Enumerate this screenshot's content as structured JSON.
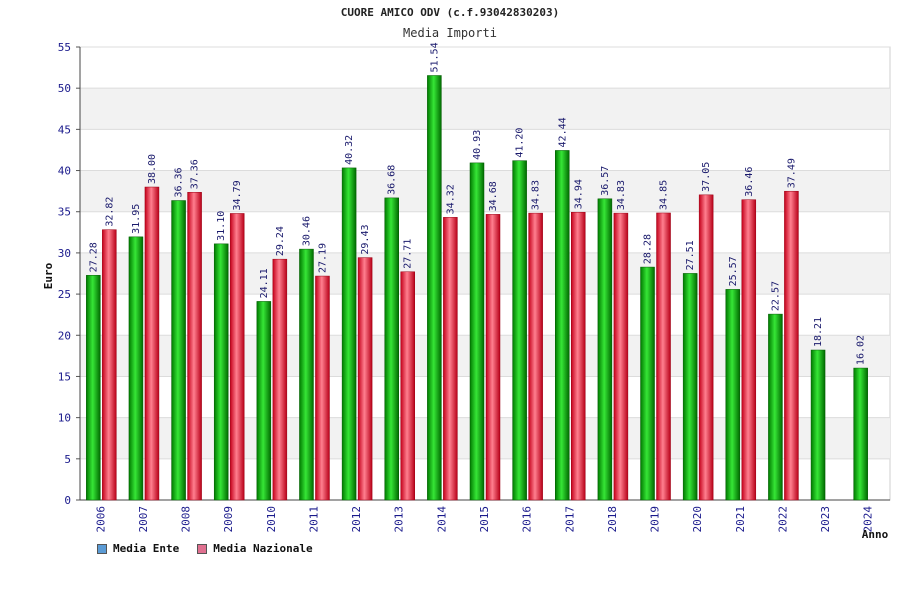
{
  "chart_data": {
    "type": "bar",
    "title": "CUORE AMICO ODV (c.f.93042830203)",
    "subtitle": "Media Importi",
    "xlabel": "Anno",
    "ylabel": "Euro",
    "ylim": [
      0,
      55
    ],
    "yticks": [
      0,
      5,
      10,
      15,
      20,
      25,
      30,
      35,
      40,
      45,
      50,
      55
    ],
    "grid": true,
    "legend_position": "bottom-left",
    "categories": [
      "2006",
      "2007",
      "2008",
      "2009",
      "2010",
      "2011",
      "2012",
      "2013",
      "2014",
      "2015",
      "2016",
      "2017",
      "2018",
      "2019",
      "2020",
      "2021",
      "2022",
      "2023",
      "2024"
    ],
    "series": [
      {
        "name": "Media Ente",
        "color": "#00b400",
        "values": [
          27.28,
          31.95,
          36.36,
          31.1,
          24.11,
          30.46,
          40.32,
          36.68,
          51.54,
          40.93,
          41.2,
          42.44,
          36.57,
          28.28,
          27.51,
          25.57,
          22.57,
          18.21,
          16.02
        ],
        "labels": [
          "27.28",
          "31.95",
          "36.36",
          "31.10",
          "24.11",
          "30.46",
          "40.32",
          "36.68",
          "51.54",
          "40.93",
          "41.20",
          "42.44",
          "36.57",
          "28.28",
          "27.51",
          "25.57",
          "22.57",
          "18.21",
          "16.02"
        ]
      },
      {
        "name": "Media Nazionale",
        "color": "#e8283c",
        "values": [
          32.82,
          38.0,
          37.36,
          34.79,
          29.24,
          27.19,
          29.43,
          27.71,
          34.32,
          34.68,
          34.83,
          34.94,
          34.83,
          34.85,
          37.05,
          36.46,
          37.49,
          null,
          null
        ],
        "labels": [
          "32.82",
          "38.00",
          "37.36",
          "34.79",
          "29.24",
          "27.19",
          "29.43",
          "27.71",
          "34.32",
          "34.68",
          "34.83",
          "34.94",
          "34.83",
          "34.85",
          "37.05",
          "36.46",
          "37.49",
          "",
          ""
        ]
      }
    ],
    "legend": [
      {
        "label": "Media Ente",
        "color": "#5b9bd5"
      },
      {
        "label": "Media Nazionale",
        "color": "#e07090"
      }
    ]
  }
}
